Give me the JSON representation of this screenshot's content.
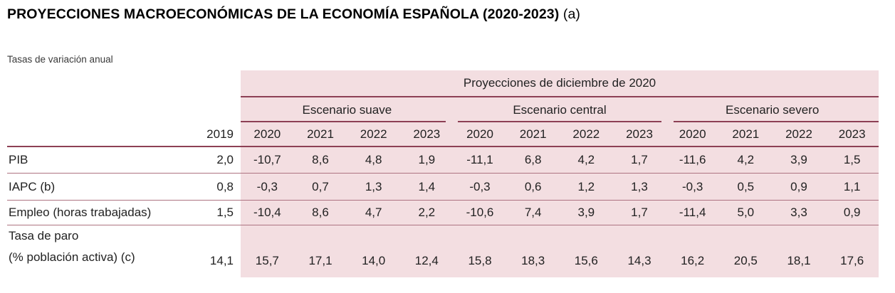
{
  "title": {
    "main": "PROYECCIONES MACROECONÓMICAS DE LA ECONOMÍA ESPAÑOLA (2020-2023)",
    "suffix": "(a)"
  },
  "subtitle": "Tasas de variación anual",
  "table": {
    "projections_header": "Proyecciones de diciembre de 2020",
    "base_year_header": "2019",
    "scenarios": [
      {
        "label": "Escenario suave",
        "years": [
          "2020",
          "2021",
          "2022",
          "2023"
        ]
      },
      {
        "label": "Escenario central",
        "years": [
          "2020",
          "2021",
          "2022",
          "2023"
        ]
      },
      {
        "label": "Escenario severo",
        "years": [
          "2020",
          "2021",
          "2022",
          "2023"
        ]
      }
    ],
    "rows": [
      {
        "label": "PIB",
        "base": "2,0",
        "suave": [
          "-10,7",
          "8,6",
          "4,8",
          "1,9"
        ],
        "central": [
          "-11,1",
          "6,8",
          "4,2",
          "1,7"
        ],
        "severo": [
          "-11,6",
          "4,2",
          "3,9",
          "1,5"
        ]
      },
      {
        "label": "IAPC (b)",
        "base": "0,8",
        "suave": [
          "-0,3",
          "0,7",
          "1,3",
          "1,4"
        ],
        "central": [
          "-0,3",
          "0,6",
          "1,2",
          "1,3"
        ],
        "severo": [
          "-0,3",
          "0,5",
          "0,9",
          "1,1"
        ]
      },
      {
        "label": "Empleo (horas trabajadas)",
        "base": "1,5",
        "suave": [
          "-10,4",
          "8,6",
          "4,7",
          "2,2"
        ],
        "central": [
          "-10,6",
          "7,4",
          "3,9",
          "1,7"
        ],
        "severo": [
          "-11,4",
          "5,0",
          "3,3",
          "0,9"
        ]
      },
      {
        "label": "Tasa de paro",
        "label2": "(% población activa) (c)",
        "base": "14,1",
        "suave": [
          "15,7",
          "17,1",
          "14,0",
          "12,4"
        ],
        "central": [
          "15,8",
          "18,3",
          "15,6",
          "14,3"
        ],
        "severo": [
          "16,2",
          "20,5",
          "18,1",
          "17,6"
        ]
      }
    ]
  },
  "colors": {
    "accent_line": "#8d4055",
    "row_line": "#ad7381",
    "panel_background": "#f3dee1"
  },
  "chart_data": {
    "type": "table",
    "title": "PROYECCIONES MACROECONÓMICAS DE LA ECONOMÍA ESPAÑOLA (2020-2023) (a)",
    "subtitle": "Tasas de variación anual",
    "group_header": "Proyecciones de diciembre de 2020",
    "scenarios": [
      "Escenario suave",
      "Escenario central",
      "Escenario severo"
    ],
    "projection_years": [
      2020,
      2021,
      2022,
      2023
    ],
    "base_year": 2019,
    "rows": [
      {
        "indicator": "PIB",
        "base_2019": 2.0,
        "suave": [
          -10.7,
          8.6,
          4.8,
          1.9
        ],
        "central": [
          -11.1,
          6.8,
          4.2,
          1.7
        ],
        "severo": [
          -11.6,
          4.2,
          3.9,
          1.5
        ]
      },
      {
        "indicator": "IAPC (b)",
        "base_2019": 0.8,
        "suave": [
          -0.3,
          0.7,
          1.3,
          1.4
        ],
        "central": [
          -0.3,
          0.6,
          1.2,
          1.3
        ],
        "severo": [
          -0.3,
          0.5,
          0.9,
          1.1
        ]
      },
      {
        "indicator": "Empleo (horas trabajadas)",
        "base_2019": 1.5,
        "suave": [
          -10.4,
          8.6,
          4.7,
          2.2
        ],
        "central": [
          -10.6,
          7.4,
          3.9,
          1.7
        ],
        "severo": [
          -11.4,
          5.0,
          3.3,
          0.9
        ]
      },
      {
        "indicator": "Tasa de paro (% población activa) (c)",
        "base_2019": 14.1,
        "suave": [
          15.7,
          17.1,
          14.0,
          12.4
        ],
        "central": [
          15.8,
          18.3,
          15.6,
          14.3
        ],
        "severo": [
          16.2,
          20.5,
          18.1,
          17.6
        ]
      }
    ]
  }
}
